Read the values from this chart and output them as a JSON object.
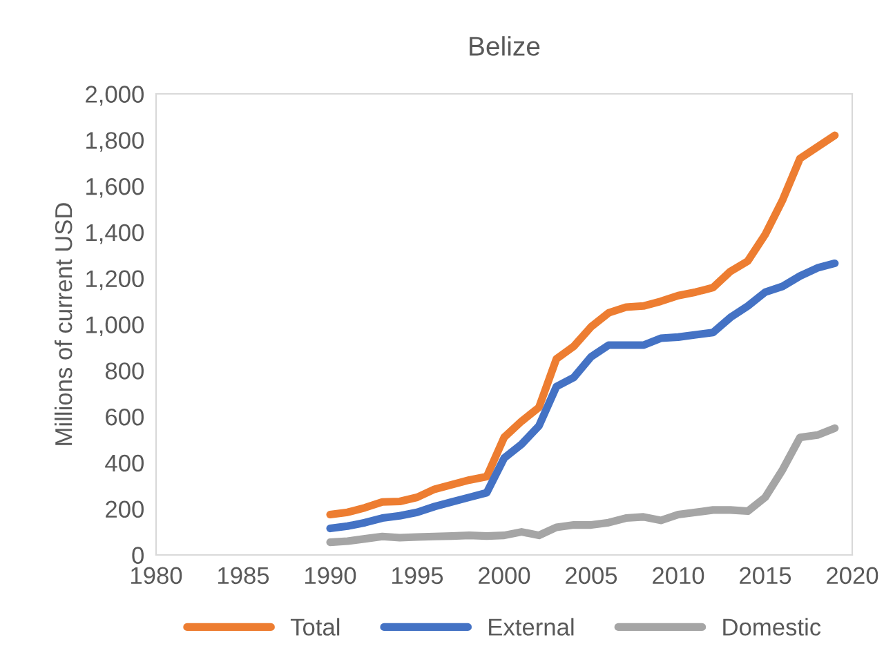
{
  "chart_data": {
    "type": "line",
    "title": "Belize",
    "ylabel": "Millions of current USD",
    "x": [
      1990,
      1991,
      1992,
      1993,
      1994,
      1995,
      1996,
      1997,
      1998,
      1999,
      2000,
      2001,
      2002,
      2003,
      2004,
      2005,
      2006,
      2007,
      2008,
      2009,
      2010,
      2011,
      2012,
      2013,
      2014,
      2015,
      2016,
      2017,
      2018,
      2019
    ],
    "series": [
      {
        "name": "Total",
        "color": "#ed7d31",
        "values": [
          175,
          185,
          205,
          230,
          232,
          250,
          285,
          305,
          325,
          340,
          510,
          580,
          640,
          850,
          905,
          990,
          1050,
          1075,
          1080,
          1100,
          1125,
          1140,
          1160,
          1230,
          1275,
          1390,
          1540,
          1720,
          1770,
          1820
        ]
      },
      {
        "name": "External",
        "color": "#4472c4",
        "values": [
          115,
          125,
          140,
          160,
          170,
          185,
          210,
          230,
          250,
          270,
          420,
          480,
          560,
          730,
          770,
          860,
          910,
          910,
          910,
          940,
          945,
          955,
          965,
          1030,
          1080,
          1140,
          1165,
          1210,
          1245,
          1265
        ]
      },
      {
        "name": "Domestic",
        "color": "#a5a5a5",
        "values": [
          55,
          60,
          70,
          80,
          75,
          78,
          80,
          82,
          85,
          82,
          85,
          100,
          85,
          120,
          130,
          130,
          140,
          160,
          165,
          150,
          175,
          185,
          195,
          195,
          190,
          250,
          370,
          510,
          520,
          550
        ]
      }
    ],
    "xlim": [
      1980,
      2020
    ],
    "xticks": [
      1980,
      1985,
      1990,
      1995,
      2000,
      2005,
      2010,
      2015,
      2020
    ],
    "ylim": [
      0,
      2000
    ],
    "yticks": [
      0,
      {
        "value": 200,
        "label": "200"
      },
      {
        "value": 400,
        "label": "400"
      },
      {
        "value": 600,
        "label": "600"
      },
      {
        "value": 800,
        "label": "800"
      },
      {
        "value": 1000,
        "label": "1,000"
      },
      {
        "value": 1200,
        "label": "1,200"
      },
      {
        "value": 1400,
        "label": "1,400"
      },
      {
        "value": 1600,
        "label": "1,600"
      },
      {
        "value": 1800,
        "label": "1,800"
      },
      {
        "value": 2000,
        "label": "2,000"
      }
    ],
    "grid": false,
    "legend": "bottom",
    "marker": "none",
    "line_style": "solid"
  }
}
